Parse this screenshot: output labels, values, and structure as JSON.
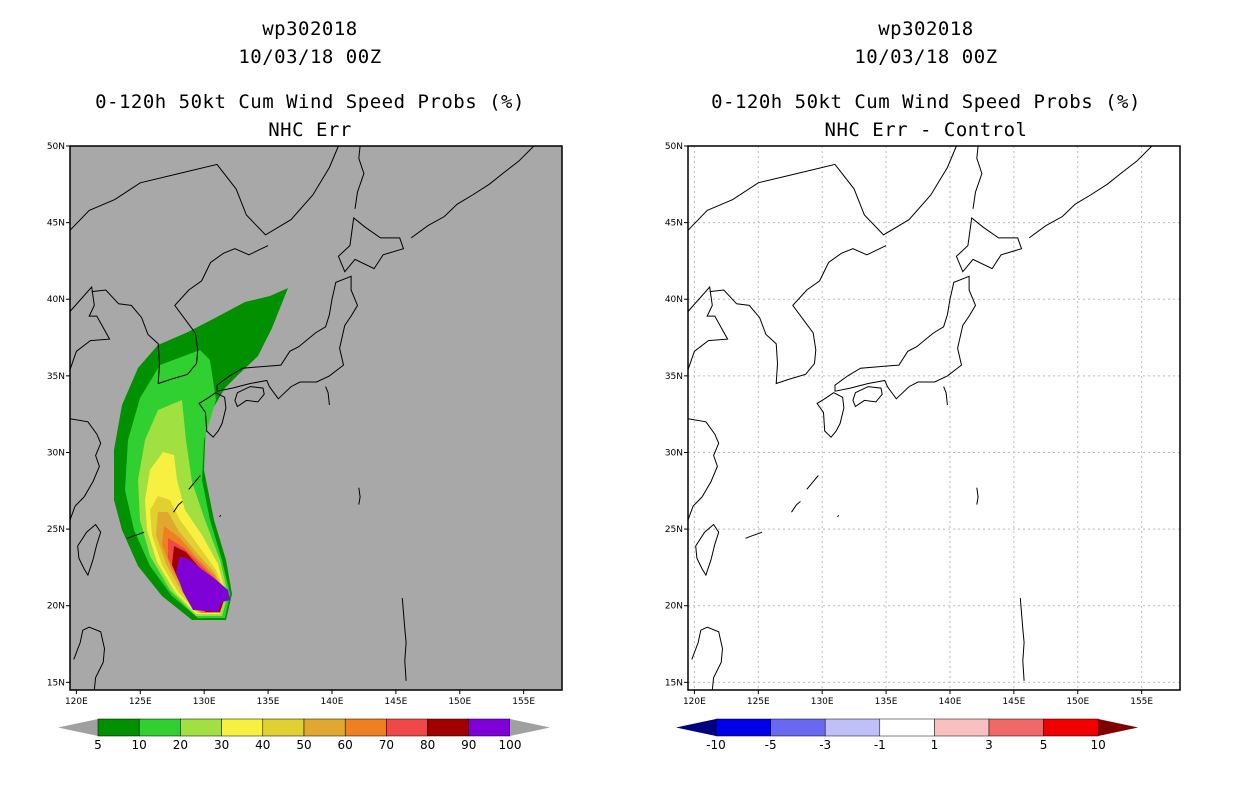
{
  "left_panel": {
    "title_line1": "wp302018",
    "title_line2": "10/03/18 00Z",
    "title_line3": "0-120h 50kt Cum Wind Speed Probs (%)",
    "title_line4": "NHC Err"
  },
  "right_panel": {
    "title_line1": "wp302018",
    "title_line2": "10/03/18 00Z",
    "title_line3": "0-120h 50kt Cum Wind Speed Probs (%)",
    "title_line4": "NHC Err - Control"
  },
  "axes": {
    "lat_labels": [
      "50N",
      "45N",
      "40N",
      "35N",
      "30N",
      "25N",
      "20N",
      "15N"
    ],
    "lat_values": [
      50,
      45,
      40,
      35,
      30,
      25,
      20,
      15
    ],
    "lon_labels": [
      "120E",
      "125E",
      "130E",
      "135E",
      "140E",
      "145E",
      "150E",
      "155E"
    ],
    "lon_values": [
      120,
      125,
      130,
      135,
      140,
      145,
      150,
      155
    ],
    "lon_range": [
      119.5,
      158
    ],
    "lat_range": [
      14.5,
      50
    ]
  },
  "left_colorbar": {
    "labels": [
      "5",
      "10",
      "20",
      "30",
      "40",
      "50",
      "60",
      "70",
      "80",
      "90",
      "100"
    ],
    "colors": [
      "#009000",
      "#30d030",
      "#a0e040",
      "#f8f040",
      "#e0d030",
      "#e0a830",
      "#ee8020",
      "#f04848",
      "#a00000",
      "#8000d8"
    ],
    "under_color": "#a0a0a0",
    "over_color": "#a0a0a0"
  },
  "right_colorbar": {
    "labels": [
      "-10",
      "-5",
      "-3",
      "-1",
      "1",
      "3",
      "5",
      "10"
    ],
    "colors": [
      "#0000e8",
      "#6868f0",
      "#c0c0f8",
      "#ffffff",
      "#f8c0c0",
      "#f06868",
      "#f00000"
    ],
    "under_color": "#000080",
    "over_color": "#800000"
  },
  "map_background": "#a8a8a8"
}
